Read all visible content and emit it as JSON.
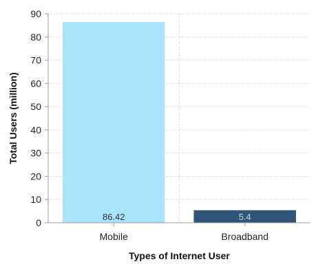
{
  "chart_data": {
    "type": "bar",
    "categories": [
      "Mobile",
      "Broadband"
    ],
    "values": [
      86.42,
      5.4
    ],
    "data_labels": [
      "86.42",
      "5.4"
    ],
    "bar_colors": [
      "#a8e4fb",
      "#2f5679"
    ],
    "xlabel": "Types of Internet User",
    "ylabel": "Total Users (million)",
    "ylim": [
      0,
      90
    ],
    "yticks": [
      "0",
      "10",
      "20",
      "30",
      "40",
      "50",
      "60",
      "70",
      "80",
      "90"
    ],
    "grid": true,
    "legend": "none"
  }
}
